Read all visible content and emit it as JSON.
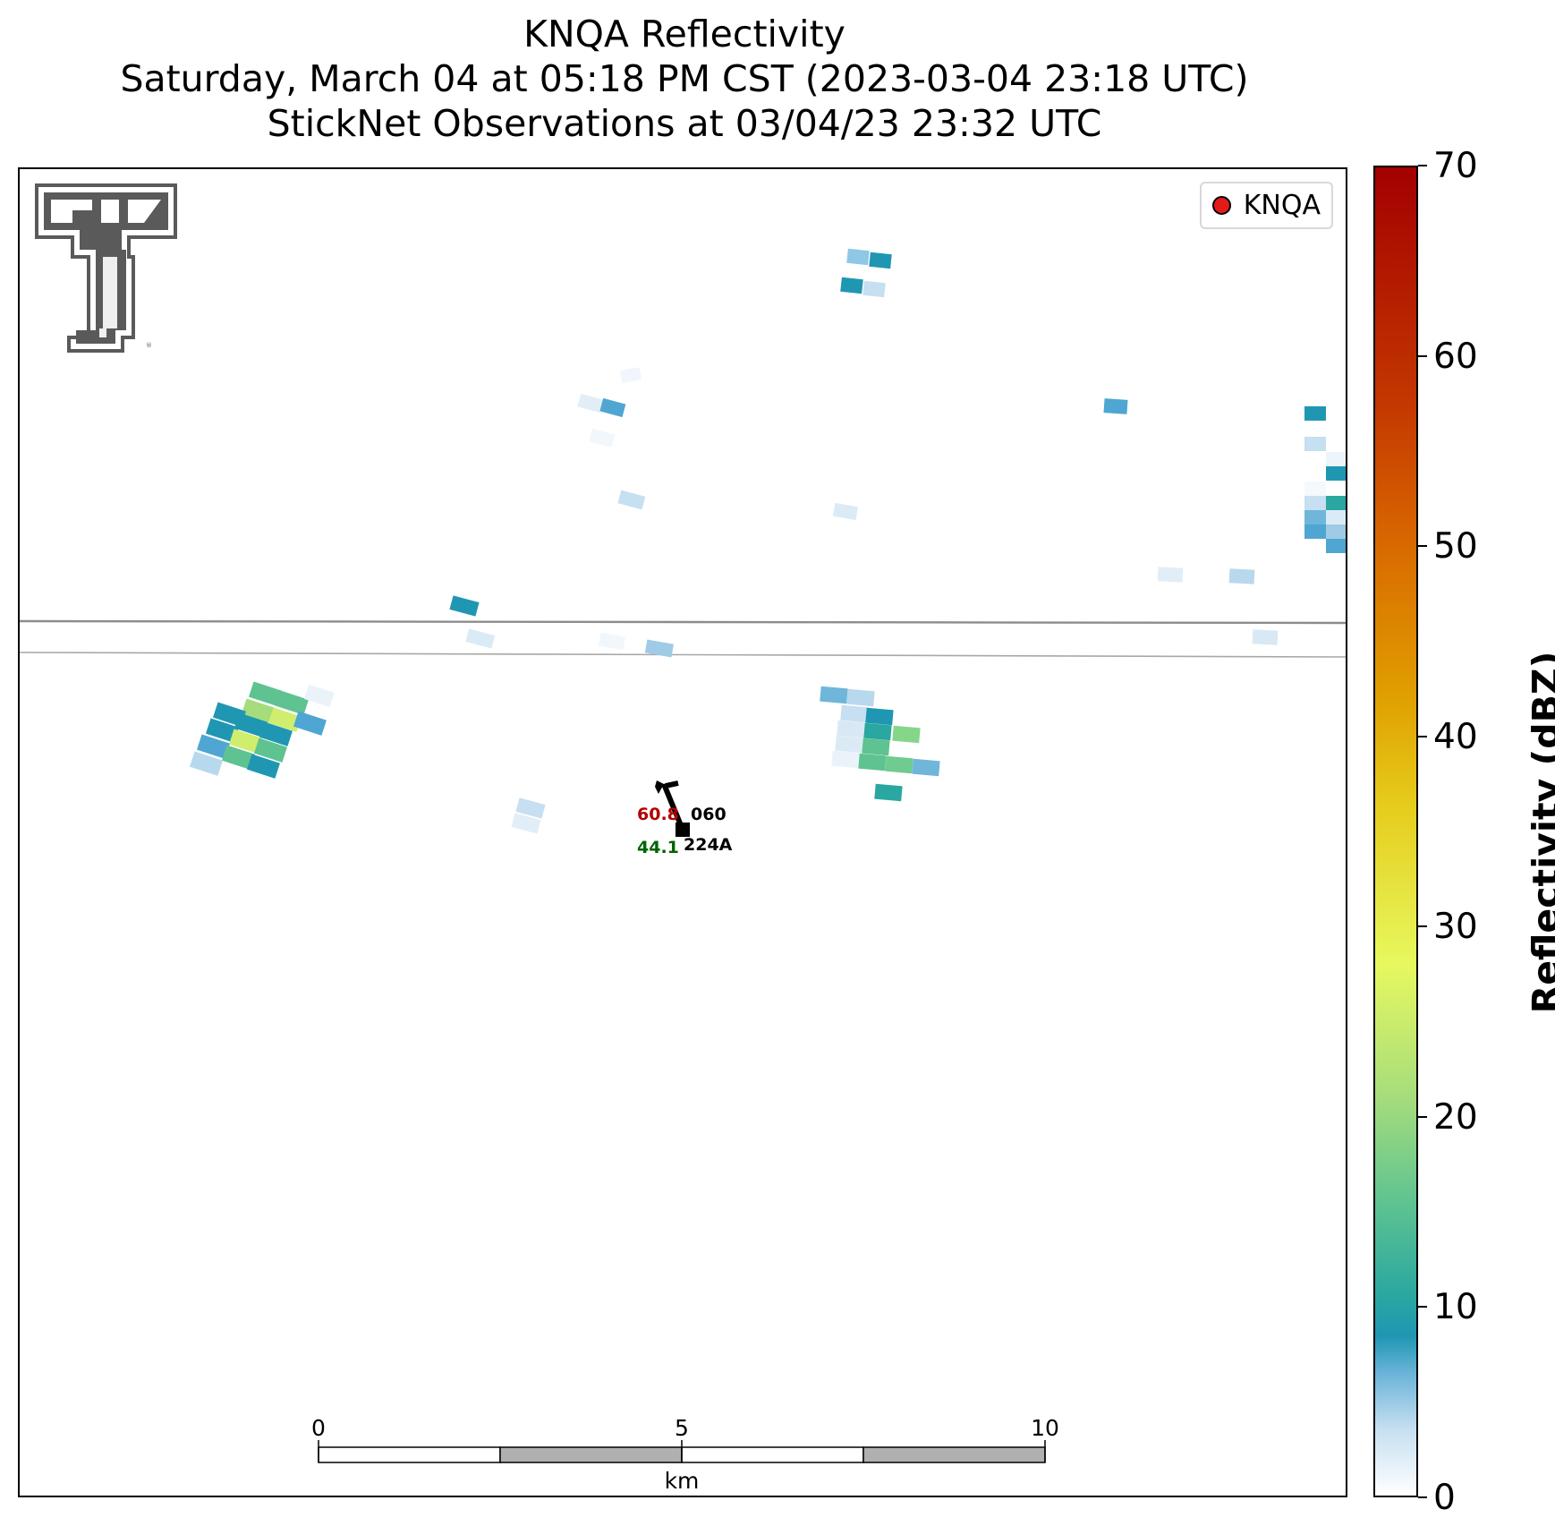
{
  "titles": {
    "line1": "KNQA Reflectivity",
    "line2": "Saturday, March 04 at 05:18 PM CST (2023-03-04 23:18 UTC)",
    "line3": "StickNet Observations at 03/04/23 23:32 UTC"
  },
  "legend": {
    "label": "KNQA",
    "marker_color": "#e41a1a"
  },
  "colorbar": {
    "label": "Reflectivity (dBZ)",
    "ticks": [
      "0",
      "10",
      "20",
      "30",
      "40",
      "50",
      "60",
      "70"
    ],
    "range": [
      0,
      70
    ]
  },
  "scalebar": {
    "unit": "km",
    "ticks": [
      "0",
      "5",
      "10"
    ]
  },
  "station": {
    "id": "224A",
    "temperature": "60.8",
    "dewpoint": "44.1",
    "pressure": "060",
    "temperature_color": "#b30000",
    "dewpoint_color": "#006400"
  },
  "logo": {
    "name": "texas-tech-double-t-logo"
  }
}
